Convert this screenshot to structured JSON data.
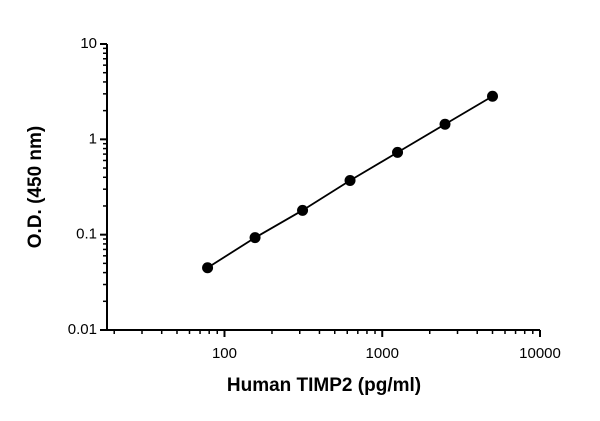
{
  "chart_data": {
    "type": "scatter",
    "line": true,
    "xlabel": "Human TIMP2 (pg/ml)",
    "ylabel": "O.D. (450 nm)",
    "x": [
      78.125,
      156.25,
      312.5,
      625,
      1250,
      2500,
      5000
    ],
    "series": [
      {
        "name": "TIMP2",
        "color": "#000000",
        "values": [
          0.045,
          0.093,
          0.18,
          0.37,
          0.73,
          1.44,
          2.83
        ]
      }
    ],
    "xscale": "log",
    "yscale": "log",
    "xlim": [
      18,
      10000
    ],
    "ylim": [
      0.01,
      10
    ],
    "xticks": [
      100,
      1000,
      10000
    ],
    "yticks": [
      0.01,
      0.1,
      1,
      10
    ]
  }
}
